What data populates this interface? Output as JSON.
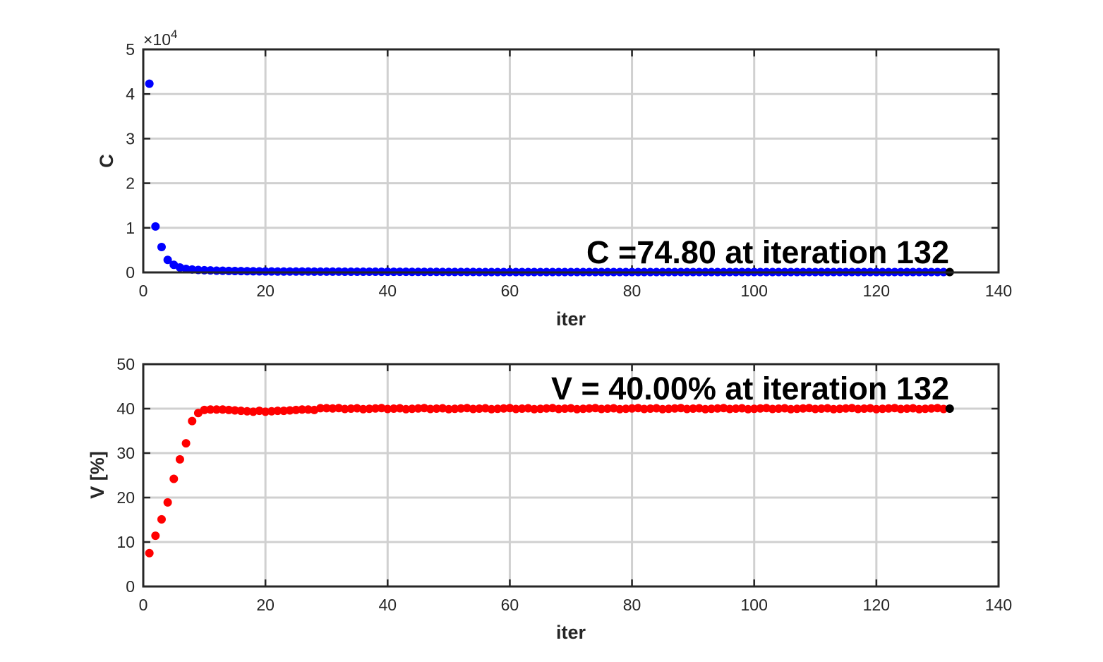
{
  "chart_data": [
    {
      "type": "scatter",
      "xlabel": "iter",
      "ylabel": "C",
      "xlim": [
        0,
        140
      ],
      "ylim": [
        0,
        5
      ],
      "x_ticks": [
        "0",
        "20",
        "40",
        "60",
        "80",
        "100",
        "120",
        "140"
      ],
      "y_ticks": [
        "0",
        "1",
        "2",
        "3",
        "4",
        "5"
      ],
      "y_exponent_label": "×10",
      "y_exponent_power": "4",
      "grid": true,
      "marker_color": "#0000ff",
      "last_marker_color": "#000000",
      "annotation": "C =74.80 at iteration 132",
      "series": [
        {
          "x_start": 1,
          "x_end": 132,
          "values_head": [
            4.23,
            1.03,
            0.57,
            0.28,
            0.17,
            0.11,
            0.08,
            0.065,
            0.055,
            0.05,
            0.045,
            0.04,
            0.037,
            0.034,
            0.031,
            0.029,
            0.027,
            0.025,
            0.023,
            0.021
          ],
          "tail_value": 0.0075
        }
      ]
    },
    {
      "type": "scatter",
      "xlabel": "iter",
      "ylabel": "V [%]",
      "xlim": [
        0,
        140
      ],
      "ylim": [
        0,
        50
      ],
      "x_ticks": [
        "0",
        "20",
        "40",
        "60",
        "80",
        "100",
        "120",
        "140"
      ],
      "y_ticks": [
        "0",
        "10",
        "20",
        "30",
        "40",
        "50"
      ],
      "grid": true,
      "marker_color": "#ff0000",
      "last_marker_color": "#000000",
      "annotation": "V = 40.00% at iteration 132",
      "series": [
        {
          "x_start": 1,
          "x_end": 132,
          "values_head": [
            7.5,
            11.4,
            15.1,
            18.9,
            24.2,
            28.6,
            32.2,
            37.2,
            39.0,
            39.7,
            39.8,
            39.8,
            39.8,
            39.7,
            39.6,
            39.5,
            39.4,
            39.3,
            39.5,
            39.3,
            39.4,
            39.5,
            39.5,
            39.6,
            39.7,
            39.8,
            39.8,
            39.7,
            40.1,
            40.1
          ],
          "tail_value": 40.0
        }
      ]
    }
  ]
}
